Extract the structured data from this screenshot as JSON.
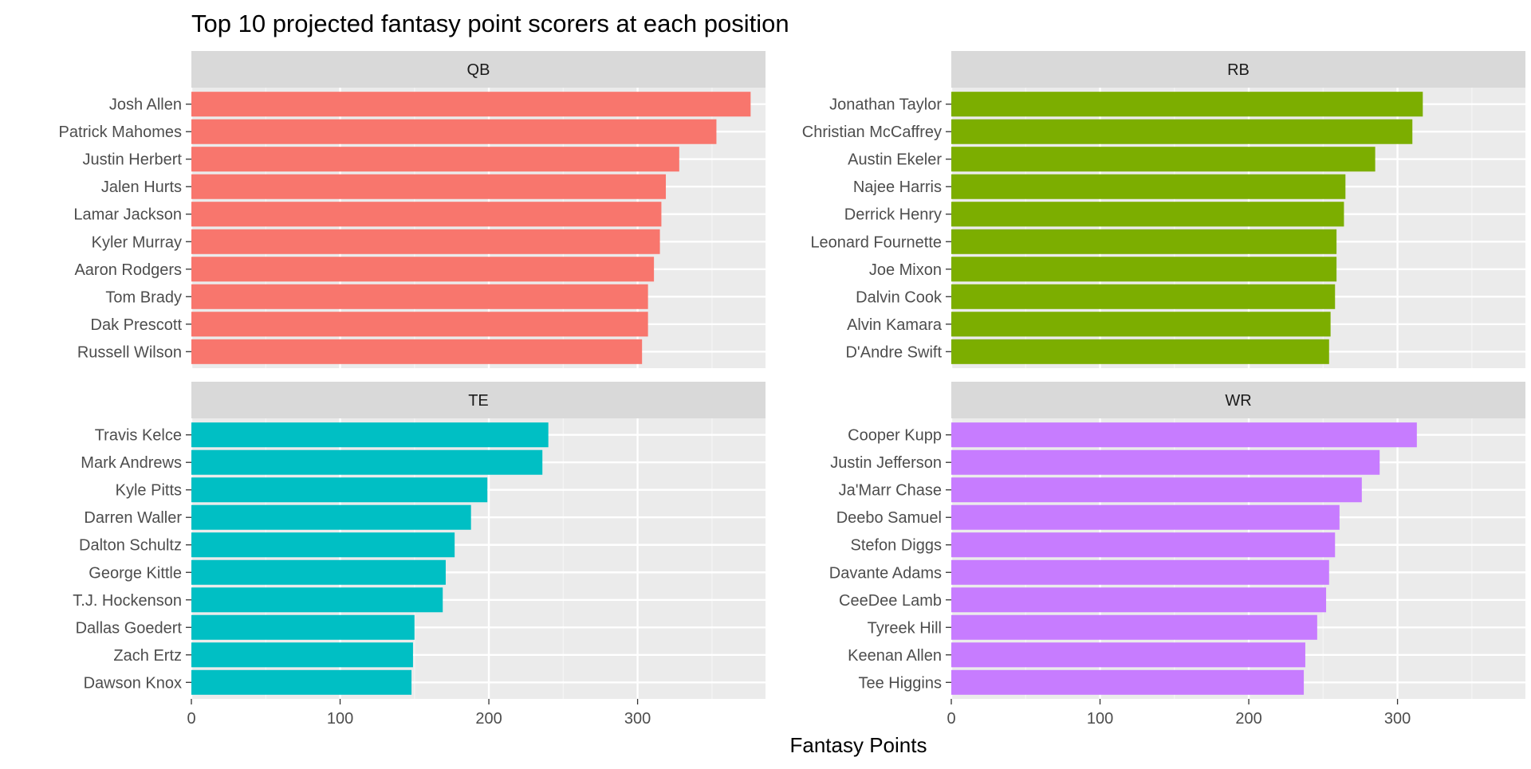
{
  "chart_data": {
    "type": "bar",
    "orientation": "horizontal",
    "title": "Top 10 projected fantasy point scorers at each position",
    "xlabel": "Fantasy Points",
    "ylabel": "",
    "xlim": [
      0,
      386
    ],
    "x_ticks": [
      0,
      100,
      200,
      300
    ],
    "x_tick_labels": [
      "0",
      "100",
      "200",
      "300"
    ],
    "grid": true,
    "legend": "none",
    "facets": [
      {
        "strip_label": "QB",
        "color": "#F8766D",
        "categories": [
          "Josh Allen",
          "Patrick Mahomes",
          "Justin Herbert",
          "Jalen Hurts",
          "Lamar Jackson",
          "Kyler Murray",
          "Aaron Rodgers",
          "Tom Brady",
          "Dak Prescott",
          "Russell Wilson"
        ],
        "values": [
          376,
          353,
          328,
          319,
          316,
          315,
          311,
          307,
          307,
          303
        ]
      },
      {
        "strip_label": "RB",
        "color": "#7CAE00",
        "categories": [
          "Jonathan Taylor",
          "Christian McCaffrey",
          "Austin Ekeler",
          "Najee Harris",
          "Derrick Henry",
          "Leonard Fournette",
          "Joe Mixon",
          "Dalvin Cook",
          "Alvin Kamara",
          "D'Andre Swift"
        ],
        "values": [
          317,
          310,
          285,
          265,
          264,
          259,
          259,
          258,
          255,
          254
        ]
      },
      {
        "strip_label": "TE",
        "color": "#00BFC4",
        "categories": [
          "Travis Kelce",
          "Mark Andrews",
          "Kyle Pitts",
          "Darren Waller",
          "Dalton Schultz",
          "George Kittle",
          "T.J. Hockenson",
          "Dallas Goedert",
          "Zach Ertz",
          "Dawson Knox"
        ],
        "values": [
          240,
          236,
          199,
          188,
          177,
          171,
          169,
          150,
          149,
          148
        ]
      },
      {
        "strip_label": "WR",
        "color": "#C77CFF",
        "categories": [
          "Cooper Kupp",
          "Justin Jefferson",
          "Ja'Marr Chase",
          "Deebo Samuel",
          "Stefon Diggs",
          "Davante Adams",
          "CeeDee Lamb",
          "Tyreek Hill",
          "Keenan Allen",
          "Tee Higgins"
        ],
        "values": [
          313,
          288,
          276,
          261,
          258,
          254,
          252,
          246,
          238,
          237
        ]
      }
    ]
  }
}
